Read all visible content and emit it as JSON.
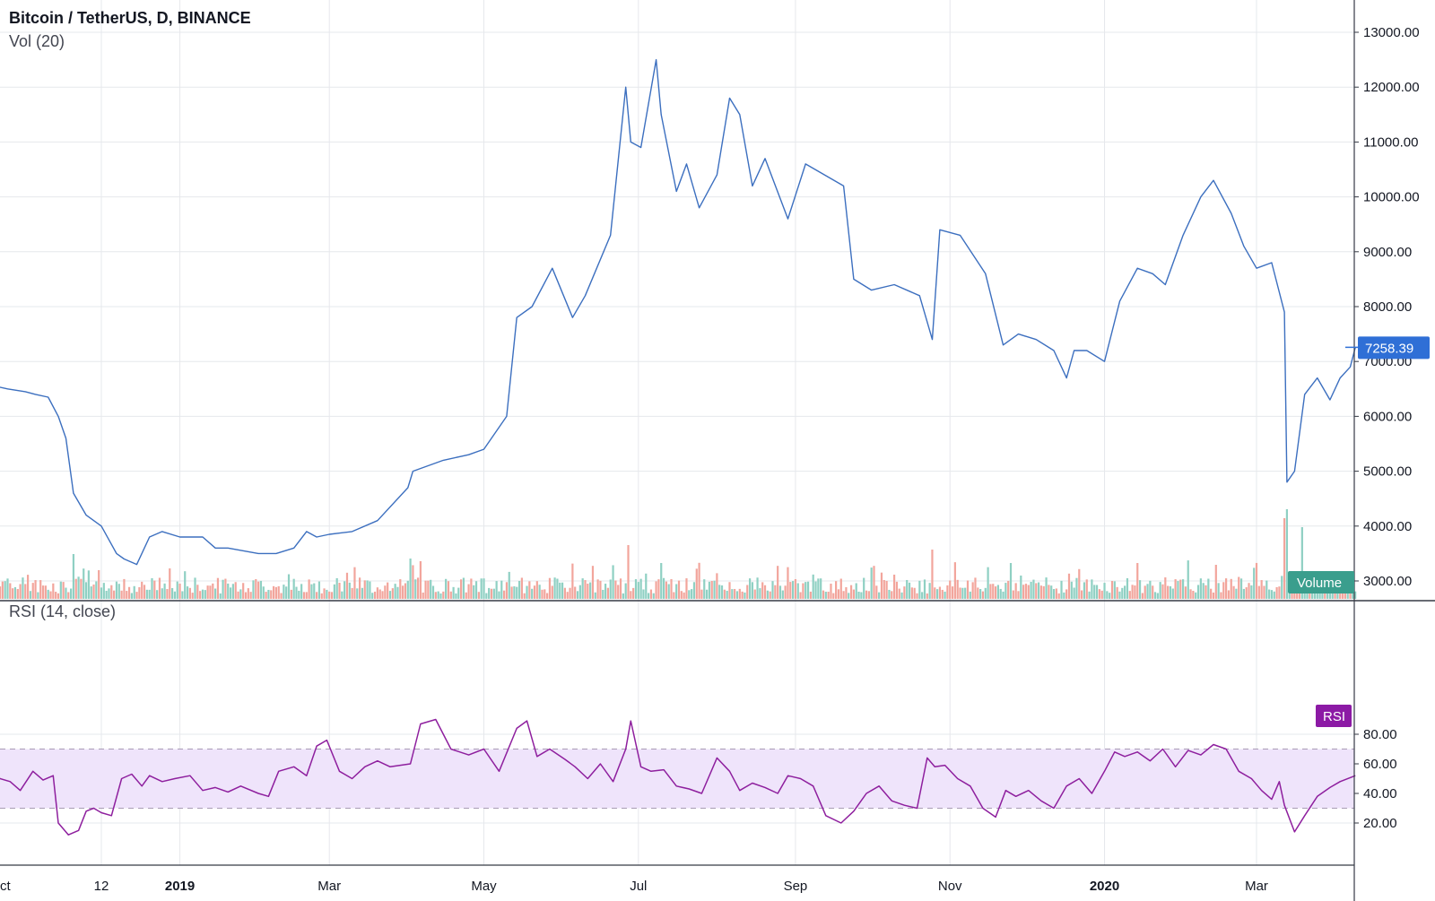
{
  "header": {
    "title": "Bitcoin / TetherUS, D, BINANCE",
    "volume_indicator": "Vol (20)",
    "rsi_indicator": "RSI (14, close)"
  },
  "colors": {
    "price_line": "#3c6fbf",
    "rsi_line": "#8e1f9e",
    "rsi_band": "#efe4fb",
    "vol_up": "#8fd0c3",
    "vol_down": "#f2a59c",
    "price_tag": "#2f6fd6",
    "volume_tag": "#3a9e8d",
    "rsi_tag": "#8c1aa5",
    "grid": "#e6e8ec"
  },
  "chart_data": [
    {
      "type": "line",
      "title": "Bitcoin / TetherUS, D, BINANCE",
      "series": [
        {
          "name": "Bitcoin / TetherUS",
          "x": [
            "2018-10-01",
            "2018-10-05",
            "2018-10-10",
            "2018-10-15",
            "2018-10-20",
            "2018-10-25",
            "2018-11-01",
            "2018-11-05",
            "2018-11-10",
            "2018-11-14",
            "2018-11-17",
            "2018-11-20",
            "2018-11-25",
            "2018-12-01",
            "2018-12-07",
            "2018-12-10",
            "2018-12-15",
            "2018-12-20",
            "2018-12-25",
            "2019-01-01",
            "2019-01-10",
            "2019-01-15",
            "2019-01-20",
            "2019-02-01",
            "2019-02-08",
            "2019-02-15",
            "2019-02-20",
            "2019-02-24",
            "2019-03-01",
            "2019-03-10",
            "2019-03-20",
            "2019-04-01",
            "2019-04-03",
            "2019-04-15",
            "2019-04-25",
            "2019-05-01",
            "2019-05-10",
            "2019-05-14",
            "2019-05-20",
            "2019-05-28",
            "2019-06-05",
            "2019-06-10",
            "2019-06-20",
            "2019-06-26",
            "2019-06-28",
            "2019-07-02",
            "2019-07-08",
            "2019-07-10",
            "2019-07-16",
            "2019-07-20",
            "2019-07-25",
            "2019-08-01",
            "2019-08-06",
            "2019-08-10",
            "2019-08-15",
            "2019-08-20",
            "2019-08-29",
            "2019-09-05",
            "2019-09-20",
            "2019-09-24",
            "2019-10-01",
            "2019-10-10",
            "2019-10-20",
            "2019-10-25",
            "2019-10-28",
            "2019-11-05",
            "2019-11-15",
            "2019-11-22",
            "2019-11-28",
            "2019-12-05",
            "2019-12-12",
            "2019-12-17",
            "2019-12-20",
            "2019-12-25",
            "2020-01-01",
            "2020-01-07",
            "2020-01-14",
            "2020-01-20",
            "2020-01-25",
            "2020-02-01",
            "2020-02-08",
            "2020-02-13",
            "2020-02-20",
            "2020-02-25",
            "2020-03-01",
            "2020-03-07",
            "2020-03-12",
            "2020-03-13",
            "2020-03-16",
            "2020-03-20",
            "2020-03-25",
            "2020-03-30",
            "2020-04-03",
            "2020-04-07",
            "2020-04-09"
          ],
          "y": [
            6600,
            6650,
            6600,
            6500,
            6550,
            6500,
            6450,
            6400,
            6350,
            6000,
            5600,
            4600,
            4200,
            4000,
            3500,
            3400,
            3300,
            3800,
            3900,
            3800,
            3800,
            3600,
            3600,
            3500,
            3500,
            3600,
            3900,
            3800,
            3850,
            3900,
            4100,
            4700,
            5000,
            5200,
            5300,
            5400,
            6000,
            7800,
            8000,
            8700,
            7800,
            8200,
            9300,
            12000,
            11000,
            10900,
            12500,
            11500,
            10100,
            10600,
            9800,
            10400,
            11800,
            11500,
            10200,
            10700,
            9600,
            10600,
            10200,
            8500,
            8300,
            8400,
            8200,
            7400,
            9400,
            9300,
            8600,
            7300,
            7500,
            7400,
            7200,
            6700,
            7200,
            7200,
            7000,
            8100,
            8700,
            8600,
            8400,
            9300,
            10000,
            10300,
            9700,
            9100,
            8700,
            8800,
            7900,
            4800,
            5000,
            6400,
            6700,
            6300,
            6700,
            6900,
            7258.39
          ]
        }
      ],
      "ylim": [
        2700,
        13300
      ],
      "yticks": [
        "3000.00",
        "4000.00",
        "5000.00",
        "6000.00",
        "7000.00",
        "8000.00",
        "9000.00",
        "10000.00",
        "11000.00",
        "12000.00",
        "13000.00"
      ],
      "last_price": "7258.39",
      "grid": true
    },
    {
      "type": "bar",
      "name": "Volume",
      "label": "Volume",
      "x_range": [
        "2018-10-01",
        "2020-04-09"
      ],
      "spikes": [
        {
          "x": "2018-11-20",
          "level": 0.8
        },
        {
          "x": "2019-04-02",
          "level": 0.7
        },
        {
          "x": "2019-06-27",
          "level": 1.0
        },
        {
          "x": "2019-07-10",
          "level": 0.6
        },
        {
          "x": "2019-10-25",
          "level": 0.9
        },
        {
          "x": "2019-11-25",
          "level": 0.6
        },
        {
          "x": "2020-01-14",
          "level": 0.6
        },
        {
          "x": "2020-03-12",
          "level": 1.6
        },
        {
          "x": "2020-03-13",
          "level": 1.8
        },
        {
          "x": "2020-03-19",
          "level": 1.4
        }
      ]
    },
    {
      "type": "line",
      "title": "RSI (14, close)",
      "series": [
        {
          "name": "RSI",
          "x": [
            "2018-10-01",
            "2018-10-05",
            "2018-10-10",
            "2018-10-14",
            "2018-10-18",
            "2018-10-22",
            "2018-10-26",
            "2018-10-30",
            "2018-11-04",
            "2018-11-08",
            "2018-11-12",
            "2018-11-14",
            "2018-11-18",
            "2018-11-22",
            "2018-11-25",
            "2018-11-28",
            "2018-12-01",
            "2018-12-05",
            "2018-12-09",
            "2018-12-13",
            "2018-12-17",
            "2018-12-20",
            "2018-12-25",
            "2018-12-30",
            "2019-01-05",
            "2019-01-10",
            "2019-01-15",
            "2019-01-20",
            "2019-01-25",
            "2019-02-01",
            "2019-02-05",
            "2019-02-09",
            "2019-02-15",
            "2019-02-20",
            "2019-02-24",
            "2019-02-28",
            "2019-03-05",
            "2019-03-10",
            "2019-03-15",
            "2019-03-20",
            "2019-03-25",
            "2019-04-02",
            "2019-04-06",
            "2019-04-12",
            "2019-04-18",
            "2019-04-25",
            "2019-05-01",
            "2019-05-07",
            "2019-05-14",
            "2019-05-18",
            "2019-05-22",
            "2019-05-27",
            "2019-06-02",
            "2019-06-06",
            "2019-06-11",
            "2019-06-16",
            "2019-06-21",
            "2019-06-26",
            "2019-06-28",
            "2019-07-02",
            "2019-07-06",
            "2019-07-11",
            "2019-07-16",
            "2019-07-21",
            "2019-07-26",
            "2019-08-01",
            "2019-08-06",
            "2019-08-10",
            "2019-08-15",
            "2019-08-20",
            "2019-08-25",
            "2019-08-29",
            "2019-09-03",
            "2019-09-08",
            "2019-09-13",
            "2019-09-19",
            "2019-09-24",
            "2019-09-29",
            "2019-10-04",
            "2019-10-09",
            "2019-10-14",
            "2019-10-19",
            "2019-10-23",
            "2019-10-26",
            "2019-10-30",
            "2019-11-04",
            "2019-11-09",
            "2019-11-14",
            "2019-11-19",
            "2019-11-23",
            "2019-11-27",
            "2019-12-02",
            "2019-12-07",
            "2019-12-12",
            "2019-12-17",
            "2019-12-22",
            "2019-12-27",
            "2020-01-01",
            "2020-01-05",
            "2020-01-09",
            "2020-01-14",
            "2020-01-19",
            "2020-01-24",
            "2020-01-29",
            "2020-02-03",
            "2020-02-08",
            "2020-02-13",
            "2020-02-18",
            "2020-02-23",
            "2020-02-28",
            "2020-03-03",
            "2020-03-07",
            "2020-03-10",
            "2020-03-12",
            "2020-03-16",
            "2020-03-20",
            "2020-03-25",
            "2020-03-30",
            "2020-04-03",
            "2020-04-09"
          ],
          "y": [
            50,
            55,
            45,
            38,
            57,
            50,
            48,
            42,
            55,
            49,
            52,
            20,
            12,
            15,
            28,
            30,
            27,
            25,
            50,
            53,
            45,
            52,
            48,
            50,
            52,
            42,
            44,
            41,
            45,
            40,
            38,
            55,
            58,
            52,
            72,
            76,
            55,
            50,
            58,
            62,
            58,
            60,
            87,
            90,
            70,
            66,
            70,
            55,
            84,
            89,
            65,
            70,
            63,
            58,
            50,
            60,
            48,
            70,
            89,
            58,
            55,
            56,
            45,
            43,
            40,
            64,
            55,
            42,
            47,
            44,
            40,
            52,
            50,
            45,
            25,
            20,
            28,
            40,
            45,
            35,
            32,
            30,
            64,
            58,
            59,
            50,
            45,
            30,
            24,
            42,
            38,
            42,
            35,
            30,
            45,
            50,
            40,
            55,
            68,
            65,
            68,
            62,
            70,
            58,
            69,
            66,
            73,
            70,
            55,
            50,
            42,
            36,
            48,
            32,
            14,
            25,
            38,
            44,
            48,
            52
          ]
        }
      ],
      "ylim": [
        5,
        95
      ],
      "yticks": [
        "20.00",
        "40.00",
        "60.00",
        "80.00"
      ],
      "bands": {
        "upper": 70,
        "lower": 30
      },
      "label": "RSI"
    }
  ],
  "x_axis": {
    "labels": [
      {
        "text": "ct",
        "date": "2018-10-01",
        "bold": false
      },
      {
        "text": "12",
        "date": "2018-12-01",
        "bold": false
      },
      {
        "text": "2019",
        "date": "2019-01-01",
        "bold": true
      },
      {
        "text": "Mar",
        "date": "2019-03-01",
        "bold": false
      },
      {
        "text": "May",
        "date": "2019-05-01",
        "bold": false
      },
      {
        "text": "Jul",
        "date": "2019-07-01",
        "bold": false
      },
      {
        "text": "Sep",
        "date": "2019-09-01",
        "bold": false
      },
      {
        "text": "Nov",
        "date": "2019-11-01",
        "bold": false
      },
      {
        "text": "2020",
        "date": "2020-01-01",
        "bold": true
      },
      {
        "text": "Mar",
        "date": "2020-03-01",
        "bold": false
      }
    ]
  }
}
